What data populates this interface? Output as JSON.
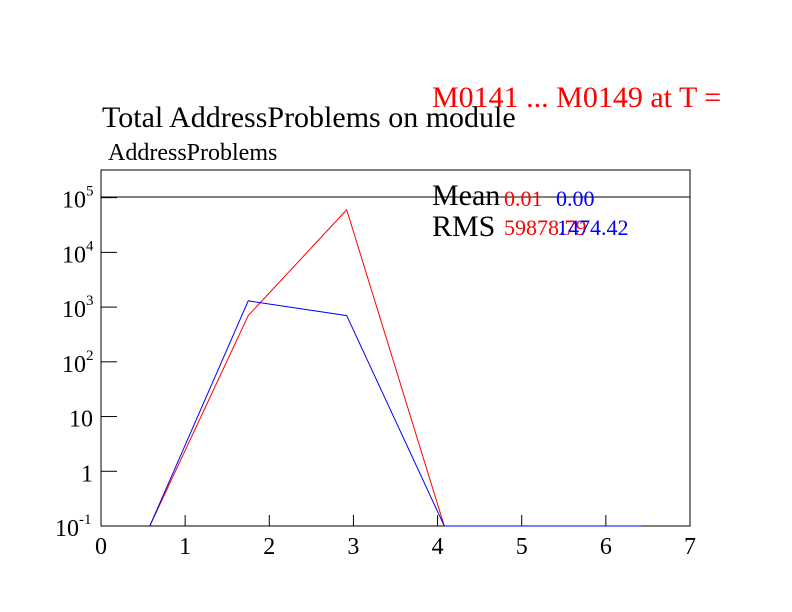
{
  "chart_data": {
    "type": "line",
    "title": "Total AddressProblems on module",
    "header": "M0141 ... M0149 at T =",
    "y_label": "AddressProblems",
    "x": [
      0.58,
      1.75,
      2.92,
      4.08,
      5.25,
      6.42
    ],
    "series": [
      {
        "color": "#ff0000",
        "values": [
          0.1,
          700,
          60000,
          0.1,
          0.1,
          0.1
        ]
      },
      {
        "color": "#0000ff",
        "values": [
          0.1,
          1300,
          700,
          0.1,
          0.1,
          0.1
        ]
      }
    ],
    "stats": {
      "mean_label": "Mean",
      "rms_label": "RMS",
      "mean": [
        {
          "value": 0.01,
          "color": "#ff0000"
        },
        {
          "value": 0.0,
          "label": "0.00",
          "color": "#0000ff"
        }
      ],
      "rms": [
        {
          "value": 59878.79,
          "color": "#ff0000"
        },
        {
          "value": 1474.42,
          "color": "#0000ff"
        }
      ]
    },
    "xlim": [
      0,
      7
    ],
    "xticks": [
      0,
      1,
      2,
      3,
      4,
      5,
      6,
      7
    ],
    "ylim": [
      0.1,
      320000
    ],
    "log_y": true,
    "yticks": [
      {
        "value": 0.1,
        "label": "10",
        "exp": "-1"
      },
      1,
      10,
      {
        "value": 100,
        "label": "10",
        "exp": "2"
      },
      {
        "value": 1000,
        "label": "10",
        "exp": "3"
      },
      {
        "value": 10000,
        "label": "10",
        "exp": "4"
      },
      {
        "value": 100000,
        "label": "10",
        "exp": "5"
      }
    ]
  }
}
